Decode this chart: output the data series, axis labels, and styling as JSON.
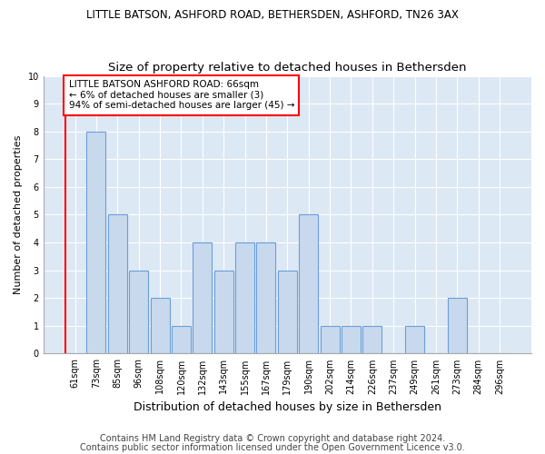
{
  "title": "LITTLE BATSON, ASHFORD ROAD, BETHERSDEN, ASHFORD, TN26 3AX",
  "subtitle": "Size of property relative to detached houses in Bethersden",
  "xlabel": "Distribution of detached houses by size in Bethersden",
  "ylabel": "Number of detached properties",
  "categories": [
    "61sqm",
    "73sqm",
    "85sqm",
    "96sqm",
    "108sqm",
    "120sqm",
    "132sqm",
    "143sqm",
    "155sqm",
    "167sqm",
    "179sqm",
    "190sqm",
    "202sqm",
    "214sqm",
    "226sqm",
    "237sqm",
    "249sqm",
    "261sqm",
    "273sqm",
    "284sqm",
    "296sqm"
  ],
  "values": [
    0,
    8,
    5,
    3,
    2,
    1,
    4,
    3,
    4,
    4,
    3,
    5,
    1,
    1,
    1,
    0,
    1,
    0,
    2,
    0,
    0
  ],
  "bar_color": "#c9d9ed",
  "bar_edgecolor": "#6a9fd8",
  "annotation_box_text": "LITTLE BATSON ASHFORD ROAD: 66sqm\n← 6% of detached houses are smaller (3)\n94% of semi-detached houses are larger (45) →",
  "ylim": [
    0,
    10
  ],
  "yticks": [
    0,
    1,
    2,
    3,
    4,
    5,
    6,
    7,
    8,
    9,
    10
  ],
  "footer1": "Contains HM Land Registry data © Crown copyright and database right 2024.",
  "footer2": "Contains public sector information licensed under the Open Government Licence v3.0.",
  "bg_color": "#dde8f5",
  "title_fontsize": 8.5,
  "subtitle_fontsize": 9.5,
  "annotation_fontsize": 7.5,
  "tick_fontsize": 7,
  "xlabel_fontsize": 9,
  "ylabel_fontsize": 8,
  "footer_fontsize": 7
}
